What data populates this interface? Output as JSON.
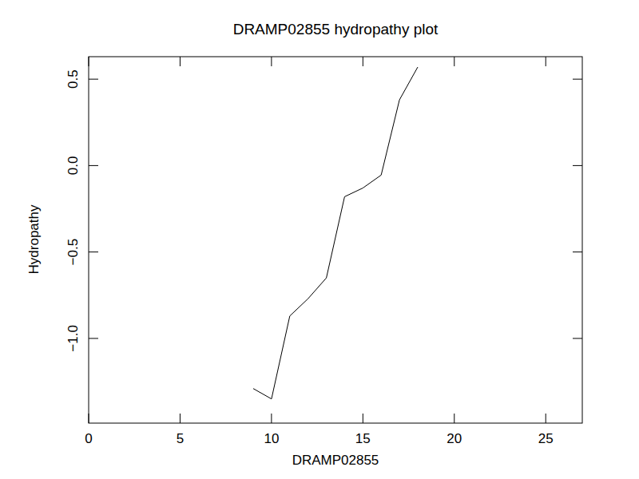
{
  "chart_data": {
    "type": "line",
    "title": "DRAMP02855 hydropathy plot",
    "x_label": "DRAMP02855",
    "y_label": "Hydropathy",
    "x": [
      9,
      10,
      11,
      12,
      13,
      14,
      15,
      16,
      17,
      18
    ],
    "values": [
      -1.29,
      -1.35,
      -0.87,
      -0.77,
      -0.65,
      -0.18,
      -0.13,
      -0.055,
      0.38,
      0.57
    ],
    "color": "#000000",
    "xlim": [
      0,
      27
    ],
    "xticks": [
      0,
      5,
      10,
      15,
      20,
      25
    ],
    "ylim": [
      -1.49,
      0.63
    ],
    "yticks": [
      {
        "value": -1.0,
        "label": "−1.0"
      },
      {
        "value": -0.5,
        "label": "−0.5"
      },
      {
        "value": 0,
        "label": "0.0"
      },
      0.5
    ],
    "grid": false
  }
}
